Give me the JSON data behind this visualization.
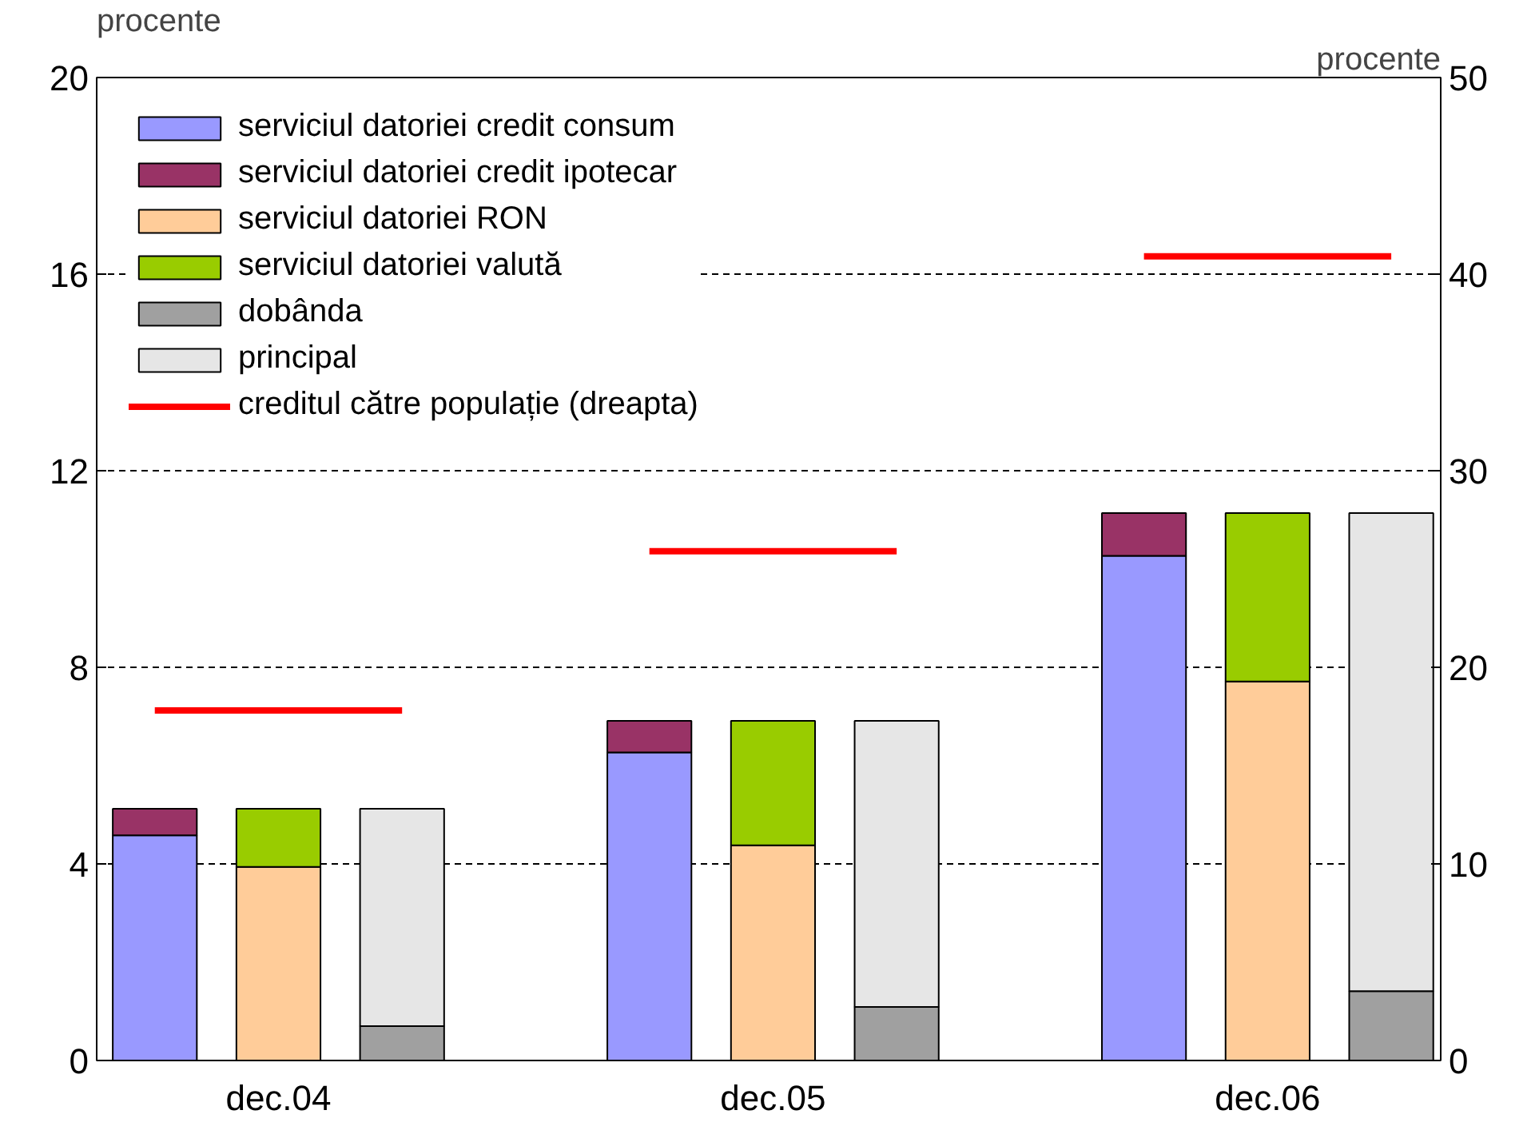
{
  "chart_data": {
    "type": "bar",
    "stacked": true,
    "ylabel": "procente",
    "y2label": "procente",
    "categories": [
      null,
      "dec.04",
      null,
      null,
      null,
      "dec.05",
      null,
      null,
      null,
      "dec.06",
      null
    ],
    "ylim": [
      0,
      20
    ],
    "yticks": [
      0,
      4,
      8,
      12,
      16,
      20
    ],
    "y2lim": [
      0,
      50
    ],
    "y2ticks": [
      0,
      10,
      20,
      30,
      40,
      50
    ],
    "grid": "y",
    "legend": "top left",
    "series": [
      {
        "name": "serviciul datoriei credit consum",
        "color": "#9999ff",
        "values": [
          4.58,
          null,
          null,
          null,
          6.27,
          null,
          null,
          null,
          10.27,
          null,
          null
        ]
      },
      {
        "name": "serviciul datoriei credit ipotecar",
        "color": "#993366",
        "values": [
          0.54,
          null,
          null,
          null,
          0.64,
          null,
          null,
          null,
          0.87,
          null,
          null
        ]
      },
      {
        "name": "serviciul datoriei RON",
        "color": "#ffcc99",
        "values": [
          null,
          3.94,
          null,
          null,
          null,
          4.38,
          null,
          null,
          null,
          7.71,
          null
        ]
      },
      {
        "name": "serviciul datoriei valută",
        "color": "#99cc00",
        "values": [
          null,
          1.18,
          null,
          null,
          null,
          2.53,
          null,
          null,
          null,
          3.43,
          null
        ]
      },
      {
        "name": "dobânda",
        "color": "#a0a0a0",
        "values": [
          null,
          null,
          0.7,
          null,
          null,
          null,
          1.09,
          null,
          null,
          null,
          1.41
        ]
      },
      {
        "name": "principal",
        "color": "#e6e6e6",
        "values": [
          null,
          null,
          4.42,
          null,
          null,
          null,
          5.82,
          null,
          null,
          null,
          9.73
        ]
      },
      {
        "name": "creditul către populație (dreapta)",
        "type": "line",
        "axis": "y2",
        "color": "#ff0000",
        "values": [
          17.8,
          17.8,
          17.8,
          null,
          25.9,
          25.9,
          25.9,
          null,
          40.9,
          40.9,
          40.9
        ]
      }
    ]
  }
}
